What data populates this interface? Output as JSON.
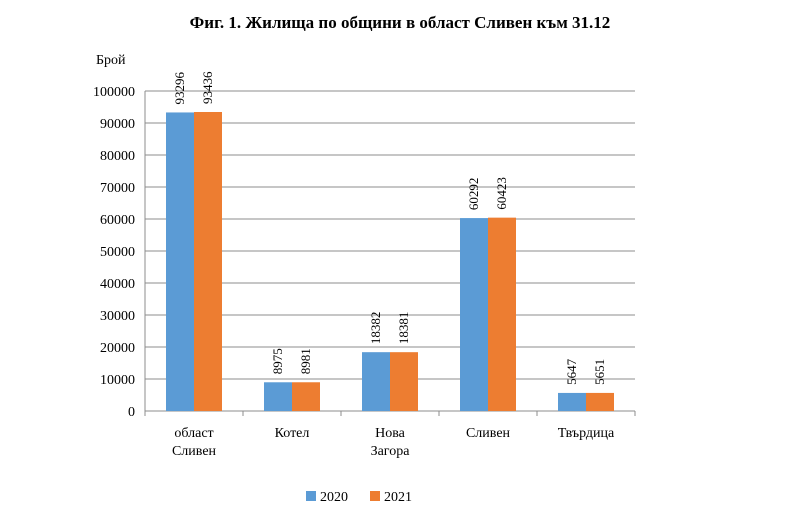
{
  "chart_data": {
    "type": "bar",
    "title": "Фиг. 1. Жилища по общини в област Сливен към 31.12",
    "ylabel": "Брой",
    "xlabel": "",
    "ylim": [
      0,
      100000
    ],
    "yticks": [
      0,
      10000,
      20000,
      30000,
      40000,
      50000,
      60000,
      70000,
      80000,
      90000,
      100000
    ],
    "grid": true,
    "legend_position": "bottom",
    "categories": [
      [
        "област",
        "Сливен"
      ],
      [
        "Котел"
      ],
      [
        "Нова",
        "Загора"
      ],
      [
        "Сливен"
      ],
      [
        "Твърдица"
      ]
    ],
    "series": [
      {
        "name": "2020",
        "color": "#5B9BD5",
        "values": [
          93296,
          8975,
          18382,
          60292,
          5647
        ]
      },
      {
        "name": "2021",
        "color": "#ED7D31",
        "values": [
          93436,
          8981,
          18381,
          60423,
          5651
        ]
      }
    ]
  }
}
